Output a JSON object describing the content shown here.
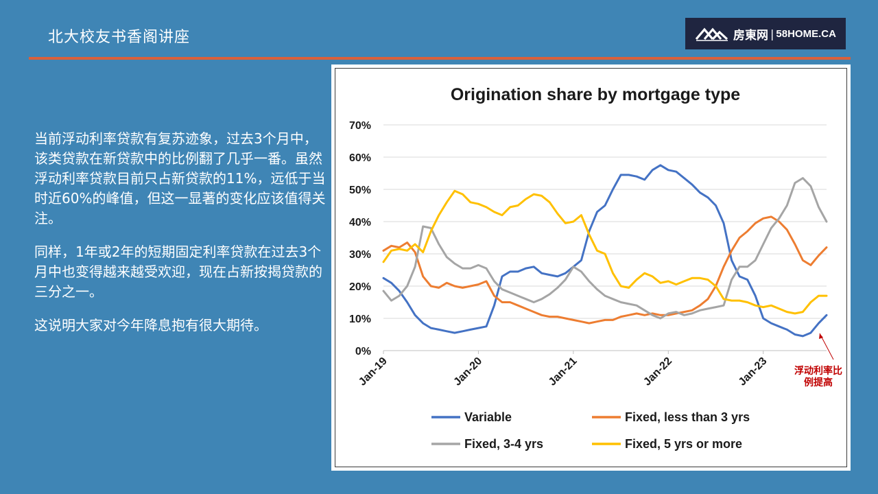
{
  "slide": {
    "title": "北大校友书香阁讲座",
    "paragraphs": [
      "当前浮动利率贷款有复苏迹象，过去3个月中，该类贷款在新贷款中的比例翻了几乎一番。虽然浮动利率贷款目前只占新贷款的11%，远低于当时近60%的峰值，但这一显著的变化应该值得关注。",
      "同样，1年或2年的短期固定利率贷款在过去3个月中也变得越来越受欢迎，现在占新按揭贷款的三分之一。",
      "这说明大家对今年降息抱有很大期待。"
    ],
    "annotation": "浮动利率比例提高"
  },
  "logo": {
    "chinese": "房東网",
    "separator": "|",
    "english": "58HOME.CA",
    "icon": "house-roofs-icon"
  },
  "colors": {
    "background": "#3f85b5",
    "rule": "#d9603a",
    "logo_bg": "#1f2540",
    "annotation": "#c00000"
  },
  "chart_data": {
    "type": "line",
    "title": "Origination share by mortgage type",
    "ylim": [
      0,
      70
    ],
    "yticks": [
      "0%",
      "10%",
      "20%",
      "30%",
      "40%",
      "50%",
      "60%",
      "70%"
    ],
    "xticks": [
      "Jan-19",
      "Jan-20",
      "Jan-21",
      "Jan-22",
      "Jan-23"
    ],
    "grid": true,
    "legend_position": "bottom",
    "x_start": "Jan-19",
    "series": [
      {
        "name": "Variable",
        "color": "#4472c4",
        "values": [
          22.5,
          21,
          18.5,
          15,
          11,
          8.5,
          7,
          6.5,
          6,
          5.5,
          6,
          6.5,
          7,
          7.5,
          14,
          23,
          24.5,
          24.5,
          25.5,
          26,
          24,
          23.5,
          23,
          24,
          26,
          28,
          37,
          43,
          45,
          50,
          54.5,
          54.5,
          54,
          53,
          56,
          57.5,
          56,
          55.5,
          53.5,
          51.5,
          49,
          47.5,
          45,
          39.5,
          28,
          23,
          22,
          17,
          10,
          8.5,
          7.5,
          6.5,
          5,
          4.5,
          5.5,
          8.5,
          11
        ]
      },
      {
        "name": "Fixed, less than 3 yrs",
        "color": "#ed7d31",
        "values": [
          31,
          32.5,
          32,
          33.5,
          30.5,
          23,
          20,
          19.5,
          21,
          20,
          19.5,
          20,
          20.5,
          21.5,
          17,
          15,
          15,
          14,
          13,
          12,
          11,
          10.5,
          10.5,
          10,
          9.5,
          9,
          8.5,
          9,
          9.5,
          9.5,
          10.5,
          11,
          11.5,
          11,
          11.5,
          11,
          11,
          11.5,
          12,
          12.5,
          14,
          16,
          20,
          26,
          31,
          35,
          37,
          39.5,
          41,
          41.5,
          40,
          37.5,
          33,
          28,
          26.5,
          29.5,
          32
        ]
      },
      {
        "name": "Fixed, 3-4 yrs",
        "color": "#a5a5a5",
        "values": [
          18.5,
          15.5,
          17,
          20,
          26,
          38.5,
          38,
          33,
          29,
          27,
          25.5,
          25.5,
          26.5,
          25.5,
          21.5,
          19,
          18,
          17,
          16,
          15,
          16,
          17.5,
          19.5,
          22,
          26,
          24.5,
          21.5,
          19,
          17,
          16,
          15,
          14.5,
          14,
          12.5,
          11,
          10,
          11.5,
          12,
          11,
          11.5,
          12.5,
          13,
          13.5,
          14,
          22,
          26,
          26,
          28,
          33,
          38,
          41,
          45,
          52,
          53.5,
          51,
          44.5,
          40
        ]
      },
      {
        "name": "Fixed, 5 yrs or more",
        "color": "#ffc000",
        "values": [
          27.5,
          31,
          31.5,
          31,
          33,
          30.5,
          37,
          42,
          46,
          49.5,
          48.5,
          46,
          45.5,
          44.5,
          43,
          42,
          44.5,
          45,
          47,
          48.5,
          48,
          46,
          42.5,
          39.5,
          40,
          42,
          36,
          31,
          30,
          24,
          20,
          19.5,
          22,
          24,
          23,
          21,
          21.5,
          20.5,
          21.5,
          22.5,
          22.5,
          22,
          20,
          16,
          15.5,
          15.5,
          15,
          14,
          13.5,
          14,
          13,
          12,
          11.5,
          12,
          15,
          17,
          17
        ]
      }
    ]
  }
}
